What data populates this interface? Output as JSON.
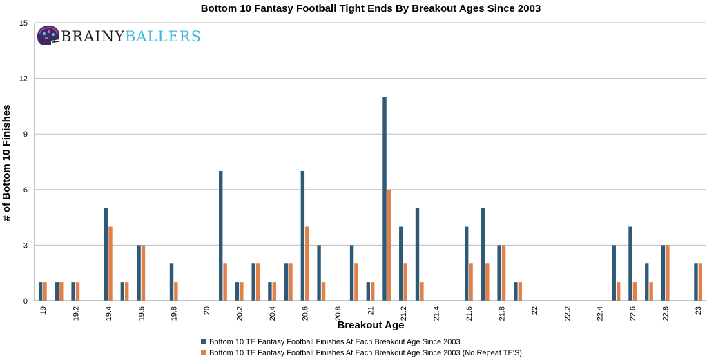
{
  "chart_data": {
    "type": "bar",
    "title": "Bottom 10 Fantasy Football Tight Ends By Breakout Ages Since 2003",
    "xlabel": "Breakout Age",
    "ylabel": "# of Bottom 10 Finishes",
    "ylim": [
      0,
      15
    ],
    "y_ticks": [
      "0",
      "3",
      "6",
      "9",
      "12",
      "15"
    ],
    "grid": true,
    "legend_position": "bottom",
    "categories": [
      "19",
      "19.1",
      "19.2",
      "19.3",
      "19.4",
      "19.5",
      "19.6",
      "19.7",
      "19.8",
      "19.9",
      "20",
      "20.1",
      "20.2",
      "20.3",
      "20.4",
      "20.5",
      "20.6",
      "20.7",
      "20.8",
      "20.9",
      "21",
      "21.1",
      "21.2",
      "21.3",
      "21.4",
      "21.5",
      "21.6",
      "21.7",
      "21.8",
      "21.9",
      "22",
      "22.1",
      "22.2",
      "22.3",
      "22.4",
      "22.5",
      "22.6",
      "22.7",
      "22.8",
      "22.9",
      "23"
    ],
    "x_tick_labels": [
      "19",
      "",
      "19.2",
      "",
      "19.4",
      "",
      "19.6",
      "",
      "19.8",
      "",
      "20",
      "",
      "20.2",
      "",
      "20.4",
      "",
      "20.6",
      "",
      "20.8",
      "",
      "21",
      "",
      "21.2",
      "",
      "21.4",
      "",
      "21.6",
      "",
      "21.8",
      "",
      "22",
      "",
      "22.2",
      "",
      "22.4",
      "",
      "22.6",
      "",
      "22.8",
      "",
      "23"
    ],
    "series": [
      {
        "name": "Bottom 10 TE Fantasy Football Finishes At Each Breakout Age Since 2003",
        "color": "#2e5a78",
        "values": [
          1,
          1,
          1,
          0,
          5,
          1,
          3,
          0,
          2,
          0,
          0,
          7,
          1,
          2,
          1,
          2,
          7,
          3,
          0,
          3,
          1,
          11,
          4,
          5,
          0,
          0,
          4,
          5,
          3,
          1,
          0,
          0,
          0,
          0,
          0,
          3,
          4,
          2,
          3,
          0,
          2
        ]
      },
      {
        "name": "Bottom 10 TE Fantasy Football Finishes At Each Breakout Age Since 2003 (No Repeat TE'S)",
        "color": "#e08149",
        "values": [
          1,
          1,
          1,
          0,
          4,
          1,
          3,
          0,
          1,
          0,
          0,
          2,
          1,
          2,
          1,
          2,
          4,
          1,
          0,
          2,
          1,
          6,
          2,
          1,
          0,
          0,
          2,
          2,
          3,
          1,
          0,
          0,
          0,
          0,
          0,
          1,
          1,
          1,
          3,
          0,
          2
        ]
      }
    ]
  },
  "logo": {
    "brainy": "BRAINY",
    "ballers": "BALLERS",
    "icon": "helmet-icon",
    "brainy_color": "#1a1a1a",
    "ballers_color": "#3fb8d8"
  }
}
